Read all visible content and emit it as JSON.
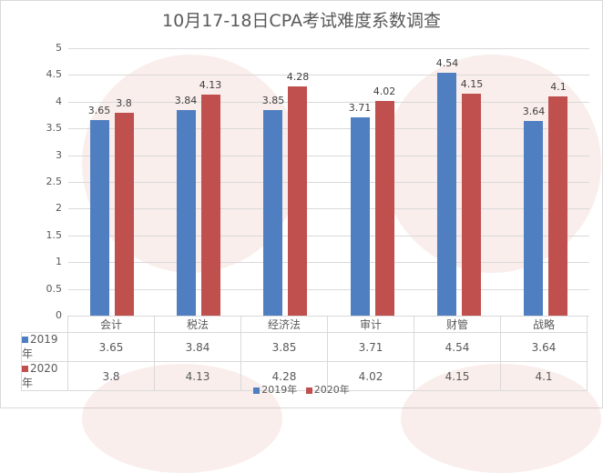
{
  "title": "10月17-18日CPA考试难度系数调查",
  "colors": {
    "s2019": "#4f7fc0",
    "s2020": "#c0504d",
    "grid": "#d9d9d9"
  },
  "y_ticks": [
    "0",
    "0.5",
    "1",
    "1.5",
    "2",
    "2.5",
    "3",
    "3.5",
    "4",
    "4.5",
    "5"
  ],
  "table": {
    "headers": [
      "会计",
      "税法",
      "经济法",
      "审计",
      "财管",
      "战略"
    ],
    "rows": [
      {
        "label": "2019年",
        "values": [
          "3.65",
          "3.84",
          "3.85",
          "3.71",
          "4.54",
          "3.64"
        ]
      },
      {
        "label": "2020年",
        "values": [
          "3.8",
          "4.13",
          "4.28",
          "4.02",
          "4.15",
          "4.1"
        ]
      }
    ]
  },
  "legend": {
    "s2019": "2019年",
    "s2020": "2020年"
  },
  "chart_data": {
    "type": "bar",
    "title": "10月17-18日CPA考试难度系数调查",
    "categories": [
      "会计",
      "税法",
      "经济法",
      "审计",
      "财管",
      "战略"
    ],
    "series": [
      {
        "name": "2019年",
        "values": [
          3.65,
          3.84,
          3.85,
          3.71,
          4.54,
          3.64
        ]
      },
      {
        "name": "2020年",
        "values": [
          3.8,
          4.13,
          4.28,
          4.02,
          4.15,
          4.1
        ]
      }
    ],
    "xlabel": "",
    "ylabel": "",
    "ylim": [
      0,
      5
    ],
    "yticks": [
      0,
      0.5,
      1,
      1.5,
      2,
      2.5,
      3,
      3.5,
      4,
      4.5,
      5
    ],
    "grid": true,
    "data_table": true,
    "legend_position": "bottom"
  }
}
